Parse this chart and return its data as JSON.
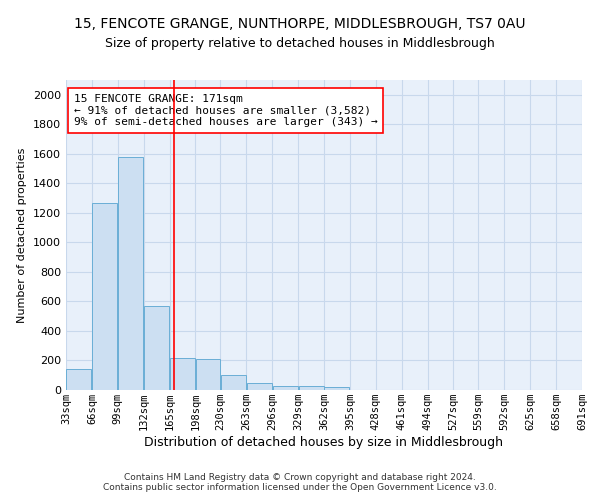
{
  "title": "15, FENCOTE GRANGE, NUNTHORPE, MIDDLESBROUGH, TS7 0AU",
  "subtitle": "Size of property relative to detached houses in Middlesbrough",
  "xlabel": "Distribution of detached houses by size in Middlesbrough",
  "ylabel": "Number of detached properties",
  "bar_color": "#ccdff2",
  "bar_edge_color": "#6aaed6",
  "grid_color": "#c8d8ec",
  "background_color": "#e8f0fa",
  "annotation_text": "15 FENCOTE GRANGE: 171sqm\n← 91% of detached houses are smaller (3,582)\n9% of semi-detached houses are larger (343) →",
  "red_line_x": 171,
  "bins": [
    33,
    66,
    99,
    132,
    165,
    198,
    230,
    263,
    296,
    329,
    362,
    395,
    428,
    461,
    494,
    527,
    559,
    592,
    625,
    658,
    691
  ],
  "bin_labels": [
    "33sqm",
    "66sqm",
    "99sqm",
    "132sqm",
    "165sqm",
    "198sqm",
    "230sqm",
    "263sqm",
    "296sqm",
    "329sqm",
    "362sqm",
    "395sqm",
    "428sqm",
    "461sqm",
    "494sqm",
    "527sqm",
    "559sqm",
    "592sqm",
    "625sqm",
    "658sqm",
    "691sqm"
  ],
  "bar_heights": [
    140,
    1270,
    1580,
    570,
    220,
    210,
    100,
    50,
    25,
    25,
    20,
    0,
    0,
    0,
    0,
    0,
    0,
    0,
    0,
    0
  ],
  "ylim": [
    0,
    2100
  ],
  "yticks": [
    0,
    200,
    400,
    600,
    800,
    1000,
    1200,
    1400,
    1600,
    1800,
    2000
  ],
  "footer": "Contains HM Land Registry data © Crown copyright and database right 2024.\nContains public sector information licensed under the Open Government Licence v3.0.",
  "title_fontsize": 10,
  "subtitle_fontsize": 9,
  "annotation_fontsize": 8,
  "ylabel_fontsize": 8,
  "xlabel_fontsize": 9,
  "tick_fontsize": 7.5,
  "ytick_fontsize": 8
}
